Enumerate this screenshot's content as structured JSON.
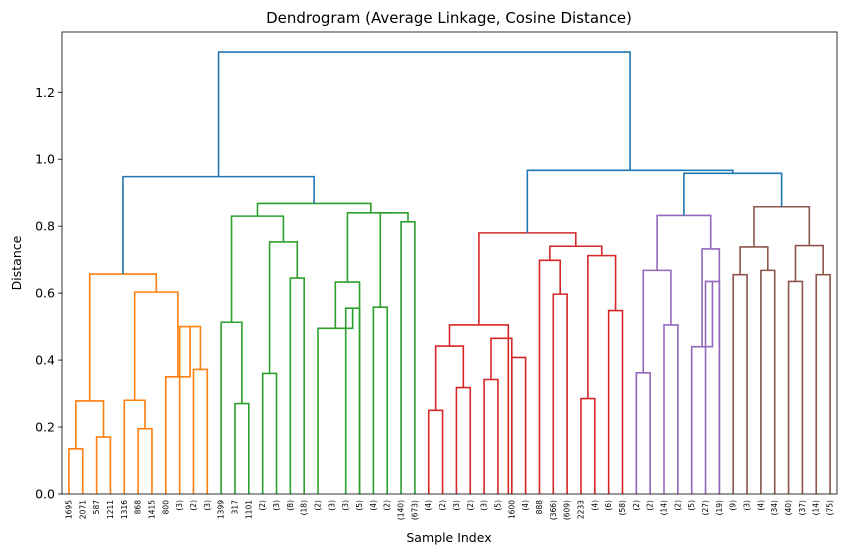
{
  "chart_data": {
    "type": "dendrogram",
    "title": "Dendrogram (Average Linkage, Cosine Distance)",
    "xlabel": "Sample Index",
    "ylabel": "Distance",
    "ylim": [
      0,
      1.38
    ],
    "yticks": [
      "0.0",
      "0.2",
      "0.4",
      "0.6",
      "0.8",
      "1.0",
      "1.2"
    ],
    "leaf_labels": [
      "1695",
      "2071",
      "587",
      "1211",
      "1316",
      "868",
      "1415",
      "800",
      "(3)",
      "(2)",
      "(3)",
      "1399",
      "317",
      "1101",
      "(2)",
      "(3)",
      "(8)",
      "(18)",
      "(2)",
      "(3)",
      "(3)",
      "(5)",
      "(4)",
      "(2)",
      "(140)",
      "(673)",
      "(4)",
      "(2)",
      "(3)",
      "(2)",
      "(3)",
      "(5)",
      "1600",
      "(4)",
      "888",
      "(366)",
      "(609)",
      "2233",
      "(4)",
      "(6)",
      "(58)",
      "(2)",
      "(2)",
      "(14)",
      "(2)",
      "(5)",
      "(27)",
      "(19)",
      "(9)",
      "(3)",
      "(4)",
      "(34)",
      "(40)",
      "(37)",
      "(14)",
      "(75)"
    ],
    "merges": [
      {
        "x": [
          1,
          2
        ],
        "h": 0.135,
        "c": "orange"
      },
      {
        "x": [
          3,
          4
        ],
        "h": 0.17,
        "c": "orange"
      },
      {
        "x": [
          1.5,
          3.5
        ],
        "h": 0.278,
        "c": "orange"
      },
      {
        "x": [
          6,
          7
        ],
        "h": 0.195,
        "c": "orange"
      },
      {
        "x": [
          5,
          6.5
        ],
        "h": 0.28,
        "c": "orange"
      },
      {
        "x": [
          10,
          11
        ],
        "h": 0.372,
        "c": "orange"
      },
      {
        "x": [
          9,
          10.5
        ],
        "h": 0.5,
        "c": "orange"
      },
      {
        "x": [
          8,
          9.75
        ],
        "h": 0.35,
        "c": "orange"
      },
      {
        "x": [
          5.75,
          8.875
        ],
        "h": 0.603,
        "c": "orange"
      },
      {
        "x": [
          2.5,
          7.3125
        ],
        "h": 0.657,
        "c": "orange"
      },
      {
        "x": [
          13,
          14
        ],
        "h": 0.27,
        "c": "green"
      },
      {
        "x": [
          12,
          13.5
        ],
        "h": 0.513,
        "c": "green"
      },
      {
        "x": [
          15,
          16
        ],
        "h": 0.36,
        "c": "green"
      },
      {
        "x": [
          17,
          18
        ],
        "h": 0.645,
        "c": "green"
      },
      {
        "x": [
          15.5,
          17.5
        ],
        "h": 0.753,
        "c": "green"
      },
      {
        "x": [
          12.75,
          16.5
        ],
        "h": 0.83,
        "c": "green"
      },
      {
        "x": [
          21,
          22
        ],
        "h": 0.555,
        "c": "green"
      },
      {
        "x": [
          19,
          21.5
        ],
        "h": 0.495,
        "c": "green"
      },
      {
        "x": [
          20.25,
          22
        ],
        "h": 0.633,
        "c": "green"
      },
      {
        "x": [
          23,
          24
        ],
        "h": 0.558,
        "c": "green"
      },
      {
        "x": [
          25,
          26
        ],
        "h": 0.813,
        "c": "green"
      },
      {
        "x": [
          23.5,
          25.5
        ],
        "h": 0.84,
        "c": "green"
      },
      {
        "x": [
          21.125,
          24.5
        ],
        "h": 0.84,
        "c": "green"
      },
      {
        "x": [
          14.625,
          22.8125
        ],
        "h": 0.868,
        "c": "green"
      },
      {
        "x": [
          4.90625,
          18.71875
        ],
        "h": 0.948,
        "c": "blue"
      },
      {
        "x": [
          29,
          30
        ],
        "h": 0.318,
        "c": "red"
      },
      {
        "x": [
          27,
          28
        ],
        "h": 0.25,
        "c": "red"
      },
      {
        "x": [
          27.5,
          29.5
        ],
        "h": 0.442,
        "c": "red"
      },
      {
        "x": [
          31,
          32
        ],
        "h": 0.342,
        "c": "red"
      },
      {
        "x": [
          31.5,
          33
        ],
        "h": 0.465,
        "c": "red"
      },
      {
        "x": [
          33,
          34
        ],
        "h": 0.408,
        "c": "red"
      },
      {
        "x": [
          28.5,
          32.75
        ],
        "h": 0.505,
        "c": "red"
      },
      {
        "x": [
          36,
          37
        ],
        "h": 0.597,
        "c": "red"
      },
      {
        "x": [
          35,
          36.5
        ],
        "h": 0.698,
        "c": "red"
      },
      {
        "x": [
          38,
          39
        ],
        "h": 0.285,
        "c": "red"
      },
      {
        "x": [
          40,
          41
        ],
        "h": 0.548,
        "c": "red"
      },
      {
        "x": [
          38.5,
          40.5
        ],
        "h": 0.712,
        "c": "red"
      },
      {
        "x": [
          35.75,
          39.5
        ],
        "h": 0.74,
        "c": "red"
      },
      {
        "x": [
          30.625,
          37.625
        ],
        "h": 0.78,
        "c": "red"
      },
      {
        "x": [
          44,
          45
        ],
        "h": 0.505,
        "c": "purple"
      },
      {
        "x": [
          42,
          43
        ],
        "h": 0.362,
        "c": "purple"
      },
      {
        "x": [
          42.5,
          44.5
        ],
        "h": 0.668,
        "c": "purple"
      },
      {
        "x": [
          47,
          48
        ],
        "h": 0.635,
        "c": "purple"
      },
      {
        "x": [
          46,
          47.5
        ],
        "h": 0.44,
        "c": "purple"
      },
      {
        "x": [
          46.75,
          48
        ],
        "h": 0.732,
        "c": "purple"
      },
      {
        "x": [
          43.5,
          47.375
        ],
        "h": 0.832,
        "c": "purple"
      },
      {
        "x": [
          49,
          50
        ],
        "h": 0.655,
        "c": "brown"
      },
      {
        "x": [
          51,
          52
        ],
        "h": 0.668,
        "c": "brown"
      },
      {
        "x": [
          49.5,
          51.5
        ],
        "h": 0.738,
        "c": "brown"
      },
      {
        "x": [
          53,
          54
        ],
        "h": 0.635,
        "c": "brown"
      },
      {
        "x": [
          55,
          56
        ],
        "h": 0.655,
        "c": "brown"
      },
      {
        "x": [
          53.5,
          55.5
        ],
        "h": 0.742,
        "c": "brown"
      },
      {
        "x": [
          50.5,
          54.5
        ],
        "h": 0.858,
        "c": "brown"
      },
      {
        "x": [
          45.4375,
          52.5
        ],
        "h": 0.958,
        "c": "blue"
      },
      {
        "x": [
          34.125,
          48.96875
        ],
        "h": 0.967,
        "c": "blue"
      },
      {
        "x": [
          11.8125,
          41.546875
        ],
        "h": 1.32,
        "c": "blue"
      }
    ],
    "colors": {
      "blue": "#1f77b4",
      "orange": "#ff7f0e",
      "green": "#2ca02c",
      "red": "#d62728",
      "purple": "#9467bd",
      "brown": "#8c564b"
    },
    "grid": false
  }
}
